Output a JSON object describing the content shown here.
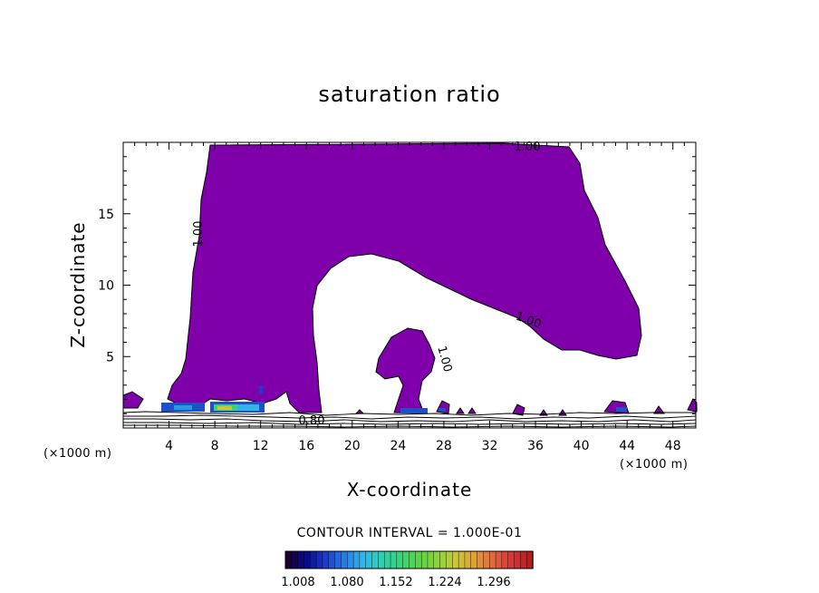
{
  "chart_data": {
    "type": "contour",
    "title": "saturation ratio",
    "xlabel": "X-coordinate",
    "ylabel": "Z-coordinate",
    "x_unit_left": "(×1000 m)",
    "x_unit_right": "(×1000 m)",
    "xlim": [
      0,
      50
    ],
    "ylim": [
      0,
      20
    ],
    "x_ticks": [
      4,
      8,
      12,
      16,
      20,
      24,
      28,
      32,
      36,
      40,
      44,
      48
    ],
    "y_ticks": [
      5,
      10,
      15
    ],
    "contour_interval_text": "CONTOUR INTERVAL = 1.000E-01",
    "contour_labels": [
      "1.00",
      "1.00",
      "1.00",
      "1.00",
      "0.80"
    ],
    "fill_color": "#7f00aa",
    "colorbar": {
      "tick_labels": [
        "1.008",
        "1.080",
        "1.152",
        "1.224",
        "1.296"
      ],
      "colors": [
        "#1a0033",
        "#0a0a8c",
        "#1e3cc8",
        "#2a7be0",
        "#33b4e8",
        "#2ecfb0",
        "#3ad27a",
        "#5ad24a",
        "#8cd23a",
        "#c8c83a",
        "#e0a03a",
        "#e06a3a",
        "#d23a3a",
        "#b41e1e"
      ]
    }
  }
}
